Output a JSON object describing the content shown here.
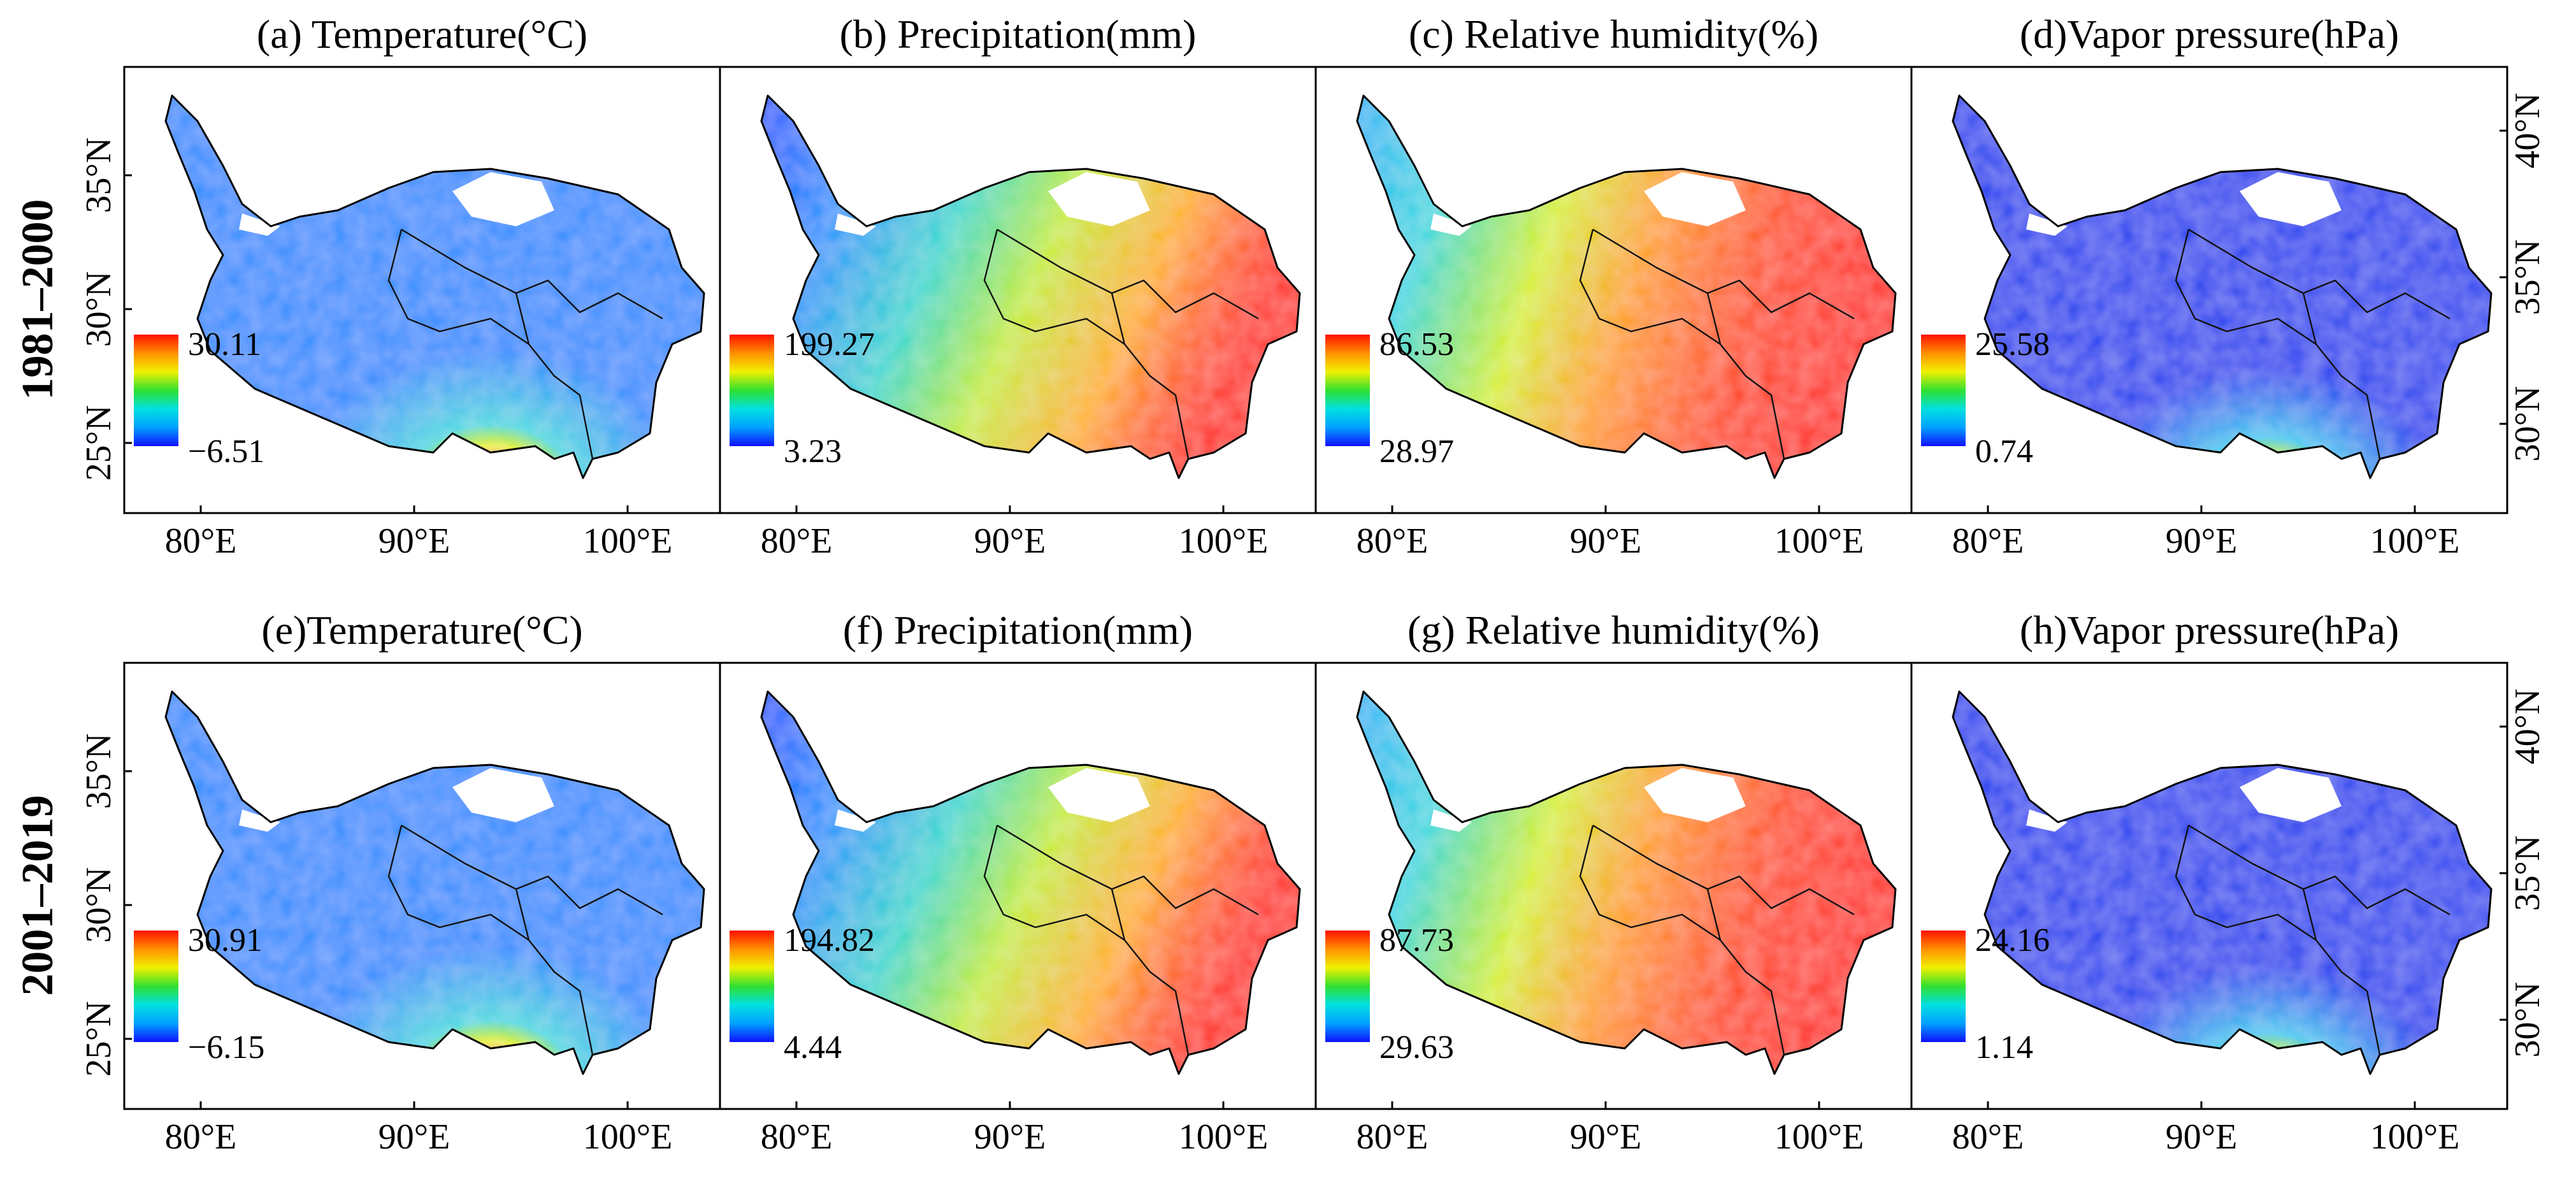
{
  "figure": {
    "rows": [
      {
        "label": "1981–2000",
        "panels": [
          {
            "title": "(a) Temperature(°C)",
            "variable": "temperature",
            "cb_max": "30.11",
            "cb_min": "−6.51"
          },
          {
            "title": "(b) Precipitation(mm)",
            "variable": "precipitation",
            "cb_max": "199.27",
            "cb_min": "3.23"
          },
          {
            "title": "(c) Relative humidity(%)",
            "variable": "humidity",
            "cb_max": "86.53",
            "cb_min": "28.97"
          },
          {
            "title": "(d)Vapor pressure(hPa)",
            "variable": "vapor",
            "cb_max": "25.58",
            "cb_min": "0.74"
          }
        ]
      },
      {
        "label": "2001–2019",
        "panels": [
          {
            "title": "(e)Temperature(°C)",
            "variable": "temperature",
            "cb_max": "30.91",
            "cb_min": "−6.15"
          },
          {
            "title": "(f) Precipitation(mm)",
            "variable": "precipitation",
            "cb_max": "194.82",
            "cb_min": "4.44"
          },
          {
            "title": "(g) Relative humidity(%)",
            "variable": "humidity",
            "cb_max": "87.73",
            "cb_min": "29.63"
          },
          {
            "title": "(h)Vapor pressure(hPa)",
            "variable": "vapor",
            "cb_max": "24.16",
            "cb_min": "1.14"
          }
        ]
      }
    ],
    "lon_ticks": [
      "80°E",
      "90°E",
      "100°E"
    ],
    "lat_ticks_left": [
      "25°N",
      "30°N",
      "35°N"
    ],
    "lat_ticks_right": [
      "30°N",
      "35°N",
      "40°N"
    ],
    "colormap": [
      "#1010ff",
      "#00a0ff",
      "#00e0e0",
      "#30e030",
      "#f0f000",
      "#ff9000",
      "#ff1000"
    ]
  }
}
